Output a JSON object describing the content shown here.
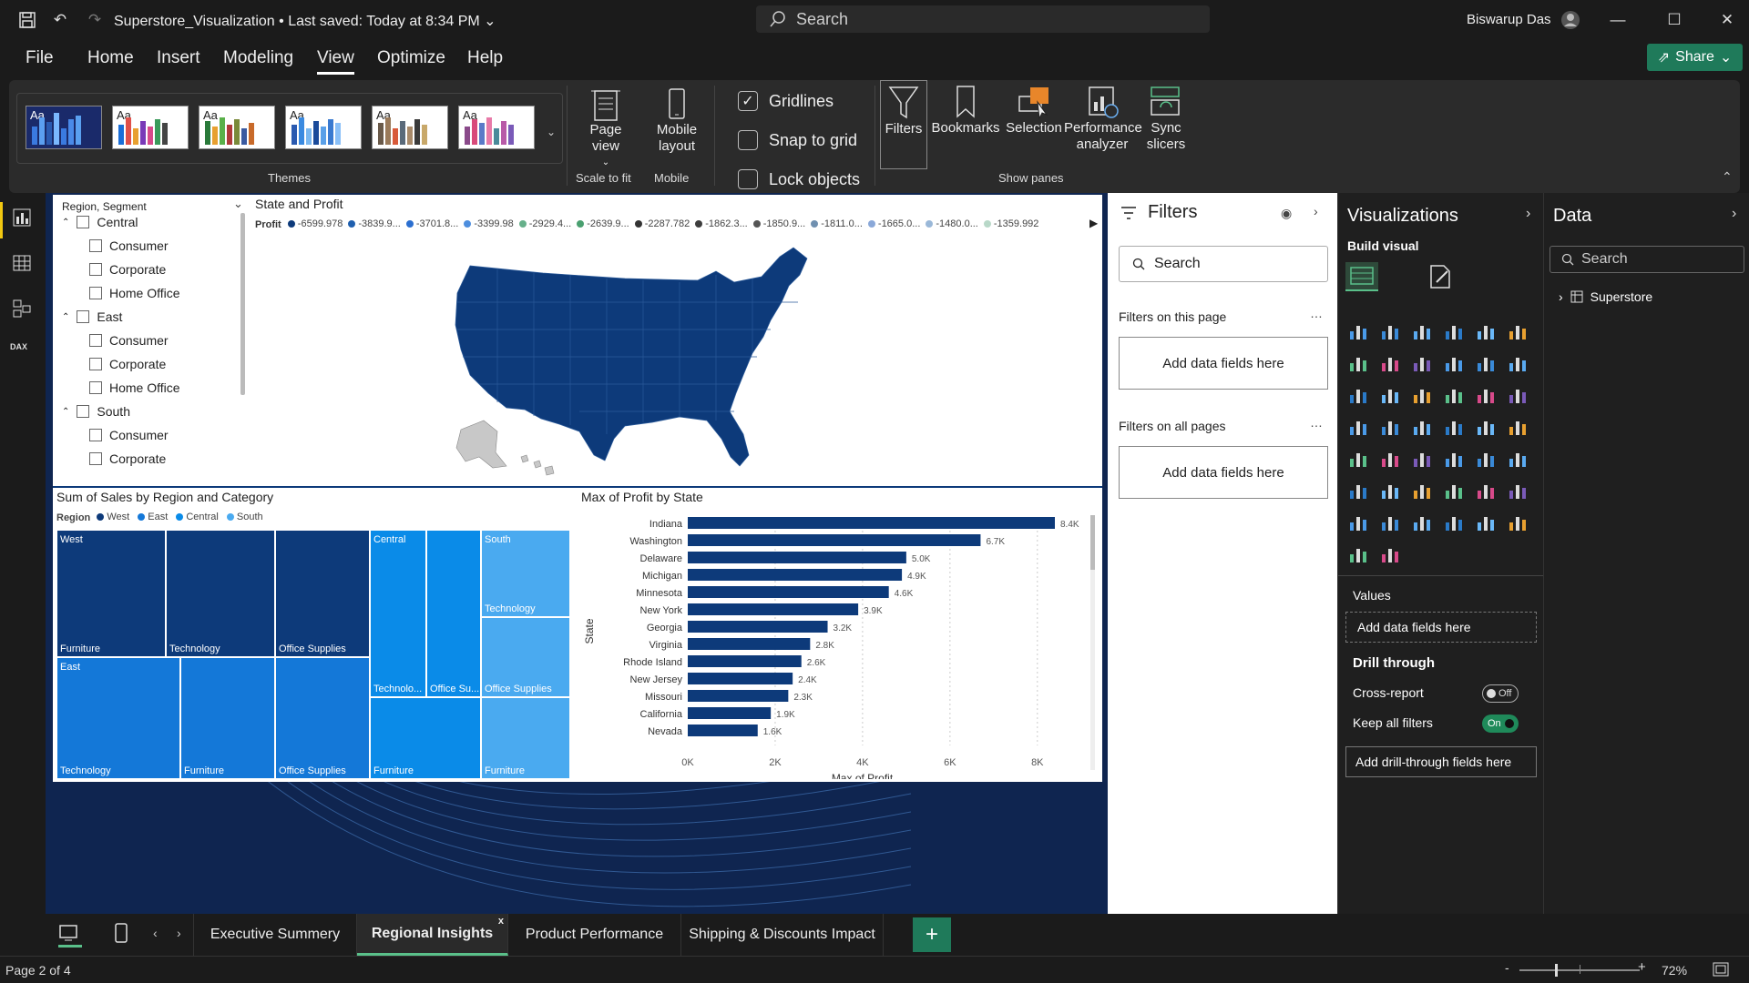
{
  "titlebar": {
    "title": "Superstore_Visualization",
    "saved": "• Last saved: Today at 8:34 PM",
    "search": "Search",
    "user": "Biswarup Das"
  },
  "menu": {
    "items": [
      "File",
      "Home",
      "Insert",
      "Modeling",
      "View",
      "Optimize",
      "Help"
    ],
    "share": "Share"
  },
  "ribbon": {
    "themes_label": "Themes",
    "theme_preview_text": "Aa",
    "page_view": "Page view",
    "mobile_layout": "Mobile layout",
    "scale_to_fit": "Scale to fit",
    "mobile": "Mobile",
    "gridlines": "Gridlines",
    "snap_to_grid": "Snap to grid",
    "lock_objects": "Lock objects",
    "filters": "Filters",
    "bookmarks": "Bookmarks",
    "selection": "Selection",
    "performance": "Performance analyzer",
    "sync": "Sync slicers",
    "show_panes": "Show panes"
  },
  "slicer": {
    "header": "Region, Segment",
    "rows": [
      {
        "label": "Central",
        "level": 0
      },
      {
        "label": "Consumer",
        "level": 1
      },
      {
        "label": "Corporate",
        "level": 1
      },
      {
        "label": "Home Office",
        "level": 1
      },
      {
        "label": "East",
        "level": 0
      },
      {
        "label": "Consumer",
        "level": 1
      },
      {
        "label": "Corporate",
        "level": 1
      },
      {
        "label": "Home Office",
        "level": 1
      },
      {
        "label": "South",
        "level": 0
      },
      {
        "label": "Consumer",
        "level": 1
      },
      {
        "label": "Corporate",
        "level": 1
      }
    ]
  },
  "map": {
    "title": "State and Profit",
    "legend_title": "Profit",
    "legend": [
      "-6599.978",
      "-3839.9...",
      "-3701.8...",
      "-3399.98",
      "-2929.4...",
      "-2639.9...",
      "-2287.782",
      "-1862.3...",
      "-1850.9...",
      "-1811.0...",
      "-1665.0...",
      "-1480.0...",
      "-1359.992"
    ],
    "legend_colors": [
      "#0d3a7a",
      "#1f5fae",
      "#2b6fd0",
      "#4d8ede",
      "#66b08a",
      "#4aa070",
      "#333333",
      "#3d3d3d",
      "#555555",
      "#7090b0",
      "#8aa8d8",
      "#9ab8d8",
      "#b8d8c8"
    ]
  },
  "treemap": {
    "title": "Sum of Sales by Region and Category",
    "legend_title": "Region",
    "legend": [
      {
        "name": "West",
        "color": "#0d3a7a"
      },
      {
        "name": "East",
        "color": "#1478d8"
      },
      {
        "name": "Central",
        "color": "#0a8be8"
      },
      {
        "name": "South",
        "color": "#4aaaf0"
      }
    ],
    "cells": [
      {
        "label": "West",
        "color": "#0d3a7a"
      },
      {
        "label": "Furniture",
        "color": "#0d3a7a"
      },
      {
        "label": "Technology",
        "color": "#0d3a7a"
      },
      {
        "label": "Office Supplies",
        "color": "#0d3a7a"
      },
      {
        "label": "East",
        "color": "#1478d8"
      },
      {
        "label": "Technology",
        "color": "#1478d8"
      },
      {
        "label": "Furniture",
        "color": "#1478d8"
      },
      {
        "label": "Office Supplies",
        "color": "#1478d8"
      },
      {
        "label": "Central",
        "color": "#0a8be8"
      },
      {
        "label": "Technolo...",
        "color": "#0a8be8"
      },
      {
        "label": "Office Su...",
        "color": "#0a8be8"
      },
      {
        "label": "Furniture",
        "color": "#0a8be8"
      },
      {
        "label": "South",
        "color": "#4aaaf0"
      },
      {
        "label": "Technology",
        "color": "#4aaaf0"
      },
      {
        "label": "Office Supplies",
        "color": "#4aaaf0"
      },
      {
        "label": "Furniture",
        "color": "#4aaaf0"
      }
    ]
  },
  "chart_data": {
    "type": "bar",
    "title": "Max of Profit by State",
    "xlabel": "Max of Profit",
    "ylabel": "State",
    "categories": [
      "Indiana",
      "Washington",
      "Delaware",
      "Michigan",
      "Minnesota",
      "New York",
      "Georgia",
      "Virginia",
      "Rhode Island",
      "New Jersey",
      "Missouri",
      "California",
      "Nevada"
    ],
    "values": [
      8400,
      6700,
      5000,
      4900,
      4600,
      3900,
      3200,
      2800,
      2600,
      2400,
      2300,
      1900,
      1600
    ],
    "data_labels": [
      "8.4K",
      "6.7K",
      "5.0K",
      "4.9K",
      "4.6K",
      "3.9K",
      "3.2K",
      "2.8K",
      "2.6K",
      "2.4K",
      "2.3K",
      "1.9K",
      "1.6K"
    ],
    "xticks": [
      "0K",
      "2K",
      "4K",
      "6K",
      "8K"
    ],
    "xlim": [
      0,
      8400
    ],
    "bar_color": "#0d3a7a",
    "grid": true
  },
  "filters": {
    "title": "Filters",
    "search": "Search",
    "on_page": "Filters on this page",
    "on_all": "Filters on all pages",
    "add": "Add data fields here"
  },
  "viz": {
    "title": "Visualizations",
    "build": "Build visual",
    "values": "Values",
    "add_values": "Add data fields here",
    "drill": "Drill through",
    "cross": "Cross-report",
    "cross_state": "Off",
    "keep": "Keep all filters",
    "keep_state": "On",
    "add_drill": "Add drill-through fields here"
  },
  "data_pane": {
    "title": "Data",
    "search": "Search",
    "table": "Superstore"
  },
  "tabs": {
    "items": [
      "Executive Summery",
      "Regional Insights",
      "Product Performance",
      "Shipping & Discounts Impact"
    ],
    "active": "Regional Insights"
  },
  "status": {
    "page": "Page 2 of 4",
    "zoom": "72%"
  }
}
